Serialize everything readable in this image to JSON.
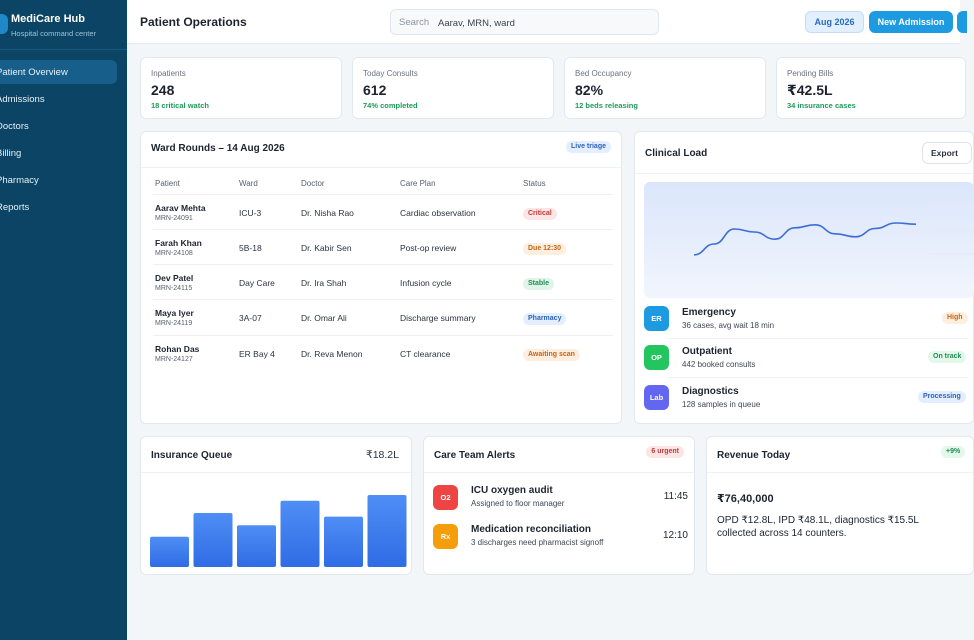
{
  "brand": {
    "title": "MediCare Hub",
    "subtitle": "Hospital command center"
  },
  "sidebar": {
    "items": [
      {
        "label": "Patient Overview",
        "active": true
      },
      {
        "label": "Admissions"
      },
      {
        "label": "Doctors"
      },
      {
        "label": "Billing"
      },
      {
        "label": "Pharmacy"
      },
      {
        "label": "Reports"
      }
    ]
  },
  "header": {
    "title": "Patient Operations",
    "search_label": "Search",
    "search_value": "Aarav, MRN, ward",
    "date_button": "Aug 2026",
    "primary_button": "New Admission"
  },
  "stats": [
    {
      "label": "Inpatients",
      "value": "248",
      "sub": "18 critical watch"
    },
    {
      "label": "Today Consults",
      "value": "612",
      "sub": "74% completed"
    },
    {
      "label": "Bed Occupancy",
      "value": "82%",
      "sub": "12 beds releasing"
    },
    {
      "label": "Pending Bills",
      "value": "₹42.5L",
      "sub": "34 insurance cases"
    }
  ],
  "ward_rounds": {
    "title": "Ward Rounds – 14 Aug 2026",
    "badge": "Live triage",
    "columns": [
      "Patient",
      "Ward",
      "Doctor",
      "Care Plan",
      "Status"
    ],
    "rows": [
      {
        "name": "Aarav Mehta",
        "mrn": "MRN-24091",
        "ward": "ICU-3",
        "doctor": "Dr. Nisha Rao",
        "plan": "Cardiac observation",
        "status": "Critical",
        "tone": "red"
      },
      {
        "name": "Farah Khan",
        "mrn": "MRN-24108",
        "ward": "5B-18",
        "doctor": "Dr. Kabir Sen",
        "plan": "Post-op review",
        "status": "Due 12:30",
        "tone": "orange"
      },
      {
        "name": "Dev Patel",
        "mrn": "MRN-24115",
        "ward": "Day Care",
        "doctor": "Dr. Ira Shah",
        "plan": "Infusion cycle",
        "status": "Stable",
        "tone": "green"
      },
      {
        "name": "Maya Iyer",
        "mrn": "MRN-24119",
        "ward": "3A-07",
        "doctor": "Dr. Omar Ali",
        "plan": "Discharge summary",
        "status": "Pharmacy",
        "tone": "blue"
      },
      {
        "name": "Rohan Das",
        "mrn": "MRN-24127",
        "ward": "ER Bay 4",
        "doctor": "Dr. Reva Menon",
        "plan": "CT clearance",
        "status": "Awaiting scan",
        "tone": "orange"
      }
    ]
  },
  "clinical_load": {
    "title": "Clinical Load",
    "export_label": "Export",
    "trend": [
      0.12,
      0.3,
      0.55,
      0.5,
      0.38,
      0.57,
      0.62,
      0.47,
      0.42,
      0.56,
      0.65,
      0.63
    ],
    "items": [
      {
        "icon": "ER",
        "name": "Emergency",
        "desc": "36 cases, avg wait 18 min",
        "badge": "High",
        "color": "#1e9be0",
        "tone": "orange"
      },
      {
        "icon": "OP",
        "name": "Outpatient",
        "desc": "442 booked consults",
        "badge": "On track",
        "color": "#22c55e",
        "tone": "green"
      },
      {
        "icon": "Lab",
        "name": "Diagnostics",
        "desc": "128 samples in queue",
        "badge": "Processing",
        "color": "#6366f1",
        "tone": "blue"
      }
    ]
  },
  "insurance_queue": {
    "title": "Insurance Queue",
    "amount": "₹18.2L",
    "bars": [
      0.42,
      0.75,
      0.58,
      0.92,
      0.7,
      1.0
    ]
  },
  "care_alerts": {
    "title": "Care Team Alerts",
    "badge": "6 urgent",
    "items": [
      {
        "icon": "O2",
        "title": "ICU oxygen audit",
        "desc": "Assigned to floor manager",
        "time": "11:45",
        "color": "#ef4444"
      },
      {
        "icon": "Rx",
        "title": "Medication reconciliation",
        "desc": "3 discharges need pharmacist signoff",
        "time": "12:10",
        "color": "#f59e0b"
      }
    ]
  },
  "revenue": {
    "title": "Revenue Today",
    "badge": "+9%",
    "amount": "₹76,40,000",
    "desc": "OPD ₹12.8L, IPD ₹48.1L, diagnostics ₹15.5L collected across 14 counters."
  }
}
